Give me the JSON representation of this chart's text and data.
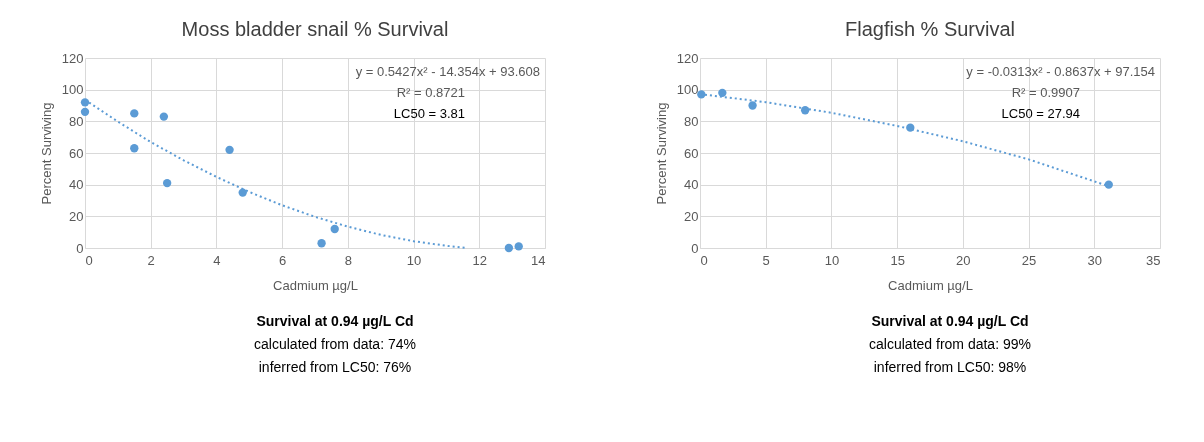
{
  "chart_data": [
    {
      "type": "scatter",
      "title": "Moss bladder snail % Survival",
      "xlabel": "Cadmium µg/L",
      "ylabel": "Percent Surviving",
      "xlim": [
        0,
        14
      ],
      "xticks": [
        0,
        2,
        4,
        6,
        8,
        10,
        12,
        14
      ],
      "ylim": [
        0,
        120
      ],
      "yticks": [
        0,
        20,
        40,
        60,
        80,
        100,
        120
      ],
      "grid": true,
      "series": [
        {
          "marker": "circle",
          "color": "#5b9bd5",
          "x": [
            0,
            0,
            1.5,
            1.5,
            2.4,
            2.5,
            4.4,
            4.8,
            7.2,
            7.6,
            12.9,
            13.2
          ],
          "values": [
            92,
            86,
            85,
            63,
            83,
            41,
            62,
            35,
            3,
            12,
            0,
            1
          ]
        },
        {
          "type": "line",
          "line_style": "dotted",
          "color": "#5b9bd5",
          "x": [
            0,
            1,
            2,
            3,
            4,
            5,
            6,
            7,
            8,
            9,
            10,
            11,
            11.6
          ],
          "values": [
            93.6,
            79.8,
            66.9,
            55.4,
            44.9,
            35.4,
            27.0,
            19.7,
            13.5,
            8.3,
            4.3,
            1.4,
            0.1
          ]
        }
      ],
      "annotations": [
        "y = 0.5427x² - 14.354x + 93.608",
        "R² = 0.8721",
        "LC50 = 3.81",
        "Survival at 0.94 µg/L Cd",
        "calculated from data:  74%",
        "inferred from LC50:  76%"
      ]
    },
    {
      "type": "scatter",
      "title": "Flagfish % Survival",
      "xlabel": "Cadmium µg/L",
      "ylabel": "Percent Surviving",
      "xlim": [
        0,
        35
      ],
      "xticks": [
        0,
        5,
        10,
        15,
        20,
        25,
        30,
        35
      ],
      "ylim": [
        0,
        120
      ],
      "yticks": [
        0,
        20,
        40,
        60,
        80,
        100,
        120
      ],
      "grid": true,
      "series": [
        {
          "marker": "circle",
          "color": "#5b9bd5",
          "x": [
            0.1,
            1.7,
            4,
            8,
            16,
            31.1
          ],
          "values": [
            97,
            98,
            90,
            87,
            76,
            40
          ]
        },
        {
          "type": "line",
          "line_style": "dotted",
          "color": "#5b9bd5",
          "x": [
            0,
            5,
            10,
            15,
            20,
            25,
            31
          ],
          "values": [
            97.2,
            92.1,
            85.4,
            77.1,
            67.4,
            56.0,
            39.3
          ]
        }
      ],
      "annotations": [
        "y = -0.0313x² - 0.8637x + 97.154",
        "R² = 0.9907",
        "LC50 = 27.94",
        "Survival at 0.94 µg/L Cd",
        "calculated from data:  99%",
        "inferred from LC50:  98%"
      ]
    }
  ]
}
